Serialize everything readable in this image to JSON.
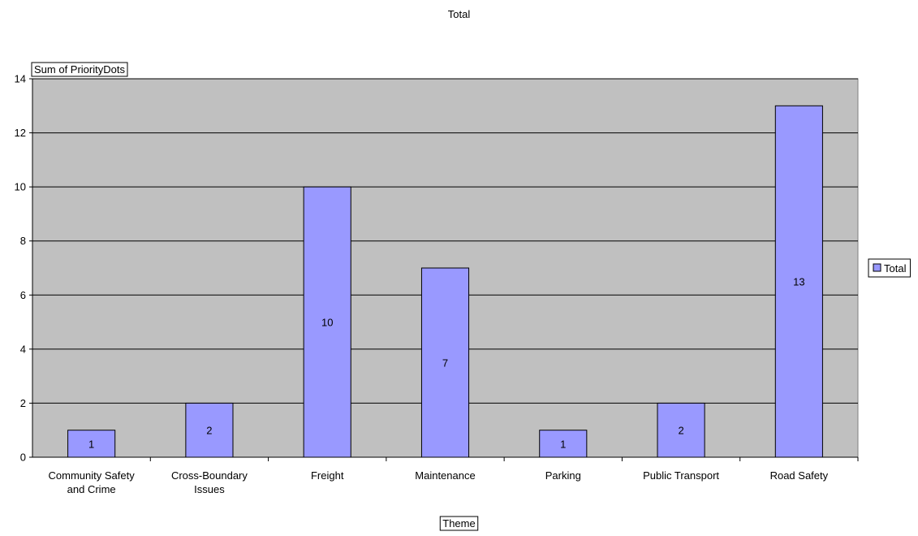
{
  "chart_data": {
    "type": "bar",
    "title": "Total",
    "field_button": "Sum of PriorityDots",
    "xlabel": "Theme",
    "ylabel": "",
    "categories": [
      [
        "Community Safety",
        "and Crime"
      ],
      [
        "Cross-Boundary",
        "Issues"
      ],
      [
        "Freight"
      ],
      [
        "Maintenance"
      ],
      [
        "Parking"
      ],
      [
        "Public Transport"
      ],
      [
        "Road Safety"
      ]
    ],
    "series": [
      {
        "name": "Total",
        "values": [
          1,
          2,
          10,
          7,
          1,
          2,
          13
        ],
        "color": "#9999ff"
      }
    ],
    "ylim": [
      0,
      14
    ],
    "yticks": [
      0,
      2,
      4,
      6,
      8,
      10,
      12,
      14
    ],
    "grid": true,
    "legend": "right",
    "plot_bg": "#c0c0c0",
    "data_labels": true
  }
}
